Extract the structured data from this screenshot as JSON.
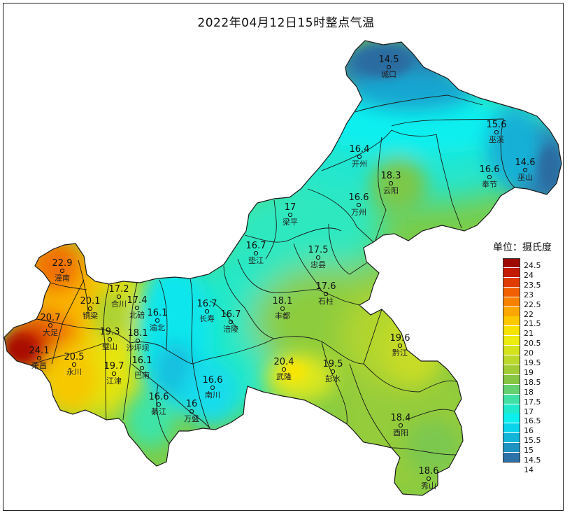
{
  "title": "2022年04月12日15时整点气温",
  "legend": {
    "title": "单位：摄氏度",
    "levels": [
      {
        "value": "24.5",
        "color": "#9e0a00"
      },
      {
        "value": "24",
        "color": "#c41a00"
      },
      {
        "value": "23.5",
        "color": "#e03c00"
      },
      {
        "value": "23",
        "color": "#f06000"
      },
      {
        "value": "22.5",
        "color": "#f88200"
      },
      {
        "value": "22",
        "color": "#fba700"
      },
      {
        "value": "21.5",
        "color": "#fcc800"
      },
      {
        "value": "21",
        "color": "#f6e400"
      },
      {
        "value": "20.5",
        "color": "#ecec10"
      },
      {
        "value": "20",
        "color": "#d4e21c"
      },
      {
        "value": "19.5",
        "color": "#bcd82a"
      },
      {
        "value": "19",
        "color": "#a2cc36"
      },
      {
        "value": "18.5",
        "color": "#86c644"
      },
      {
        "value": "18",
        "color": "#64d070"
      },
      {
        "value": "17.5",
        "color": "#40e0a4"
      },
      {
        "value": "17",
        "color": "#20eacc"
      },
      {
        "value": "16.5",
        "color": "#0cefef"
      },
      {
        "value": "16",
        "color": "#0ad4ec"
      },
      {
        "value": "15.5",
        "color": "#12b4d8"
      },
      {
        "value": "15",
        "color": "#1e92c0"
      },
      {
        "value": "14.5",
        "color": "#2c72a8"
      },
      {
        "value": "14",
        "color": ""
      }
    ]
  },
  "stations": [
    {
      "name": "城口",
      "value": "14.5"
    },
    {
      "name": "巫溪",
      "value": "15.6"
    },
    {
      "name": "开州",
      "value": "16.4"
    },
    {
      "name": "云阳",
      "value": "18.3"
    },
    {
      "name": "奉节",
      "value": "16.6"
    },
    {
      "name": "巫山",
      "value": "14.6"
    },
    {
      "name": "万州",
      "value": "16.6"
    },
    {
      "name": "梁平",
      "value": "17"
    },
    {
      "name": "垫江",
      "value": "16.7"
    },
    {
      "name": "忠县",
      "value": "17.5"
    },
    {
      "name": "石柱",
      "value": "17.6"
    },
    {
      "name": "潼南",
      "value": "22.9"
    },
    {
      "name": "合川",
      "value": "17.2"
    },
    {
      "name": "铜梁",
      "value": "20.1"
    },
    {
      "name": "北碚",
      "value": "17.4"
    },
    {
      "name": "渝北",
      "value": "16.1"
    },
    {
      "name": "长寿",
      "value": "16.7"
    },
    {
      "name": "涪陵",
      "value": "16.7"
    },
    {
      "name": "丰都",
      "value": "18.1"
    },
    {
      "name": "大足",
      "value": "20.7"
    },
    {
      "name": "璧山",
      "value": "19.3"
    },
    {
      "name": "沙坪坝",
      "value": "18.1"
    },
    {
      "name": "荣昌",
      "value": "24.1"
    },
    {
      "name": "永川",
      "value": "20.5"
    },
    {
      "name": "江津",
      "value": "19.7"
    },
    {
      "name": "巴南",
      "value": "16.1"
    },
    {
      "name": "武隆",
      "value": "20.4"
    },
    {
      "name": "彭水",
      "value": "19.5"
    },
    {
      "name": "黔江",
      "value": "19.6"
    },
    {
      "name": "綦江",
      "value": "16.6"
    },
    {
      "name": "万盛",
      "value": "16"
    },
    {
      "name": "南川",
      "value": "16.6"
    },
    {
      "name": "酉阳",
      "value": "18.4"
    },
    {
      "name": "秀山",
      "value": "18.6"
    }
  ]
}
